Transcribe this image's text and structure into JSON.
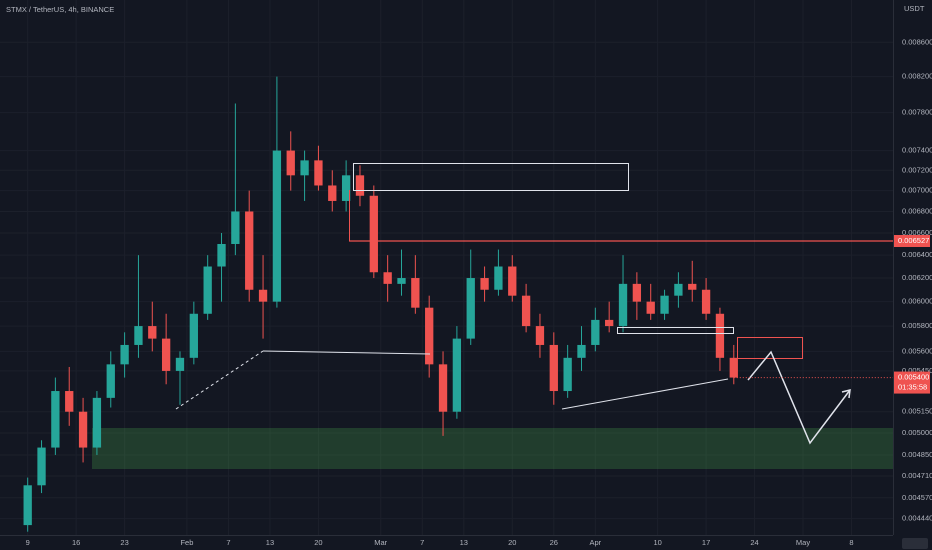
{
  "chart_data": {
    "type": "candlestick",
    "title": "STMX / TetherUS, 4h, BINANCE",
    "currency": "USDT",
    "log_scale": true,
    "grid": true,
    "up_color": "#26a69a",
    "down_color": "#ef5350",
    "x": [
      9,
      11,
      13,
      15,
      17,
      19,
      21,
      23,
      25,
      27,
      29,
      31,
      33,
      35,
      37,
      39,
      41,
      43,
      45,
      47,
      49,
      51,
      53,
      55,
      57,
      59,
      61,
      63,
      65,
      67,
      69,
      71,
      73,
      75,
      77,
      79,
      81,
      83,
      85,
      87,
      89,
      91,
      93,
      95,
      97,
      99,
      101,
      103,
      105,
      107,
      109,
      111
    ],
    "open": [
      0.0044,
      0.00465,
      0.0049,
      0.0053,
      0.00515,
      0.0049,
      0.00525,
      0.0055,
      0.00565,
      0.0058,
      0.0057,
      0.00545,
      0.00555,
      0.0059,
      0.0063,
      0.0065,
      0.0068,
      0.0061,
      0.006,
      0.0074,
      0.00715,
      0.0073,
      0.00705,
      0.0069,
      0.00715,
      0.00695,
      0.00625,
      0.00615,
      0.0062,
      0.00595,
      0.0055,
      0.00515,
      0.0057,
      0.0062,
      0.0061,
      0.0063,
      0.00605,
      0.0058,
      0.00565,
      0.0053,
      0.00555,
      0.00565,
      0.00585,
      0.0058,
      0.00615,
      0.006,
      0.0059,
      0.00605,
      0.00615,
      0.0061,
      0.0059,
      0.00555
    ],
    "high": [
      0.0047,
      0.00495,
      0.0054,
      0.00548,
      0.00525,
      0.0053,
      0.0056,
      0.00575,
      0.0064,
      0.006,
      0.0059,
      0.0056,
      0.006,
      0.0064,
      0.0066,
      0.0079,
      0.007,
      0.0064,
      0.0082,
      0.0076,
      0.0074,
      0.00745,
      0.0072,
      0.0073,
      0.00725,
      0.00705,
      0.0064,
      0.00645,
      0.0064,
      0.00605,
      0.0056,
      0.0058,
      0.00645,
      0.0063,
      0.00645,
      0.0064,
      0.00615,
      0.0059,
      0.00575,
      0.00565,
      0.0058,
      0.00595,
      0.006,
      0.0064,
      0.00625,
      0.00615,
      0.0061,
      0.00625,
      0.00635,
      0.0062,
      0.00595,
      0.00565
    ],
    "low": [
      0.00436,
      0.0046,
      0.00485,
      0.00505,
      0.0048,
      0.00485,
      0.00518,
      0.0054,
      0.00555,
      0.0056,
      0.00535,
      0.0052,
      0.0055,
      0.00585,
      0.006,
      0.0064,
      0.006,
      0.0057,
      0.00595,
      0.007,
      0.0069,
      0.007,
      0.0068,
      0.0068,
      0.00685,
      0.0062,
      0.006,
      0.00605,
      0.0059,
      0.0054,
      0.00498,
      0.0051,
      0.00565,
      0.006,
      0.00605,
      0.006,
      0.00575,
      0.00555,
      0.0052,
      0.00525,
      0.00545,
      0.0056,
      0.00575,
      0.00575,
      0.00585,
      0.00585,
      0.00585,
      0.00595,
      0.006,
      0.00585,
      0.00545,
      0.00535
    ],
    "close": [
      0.00465,
      0.0049,
      0.0053,
      0.00515,
      0.0049,
      0.00525,
      0.0055,
      0.00565,
      0.0058,
      0.0057,
      0.00545,
      0.00555,
      0.0059,
      0.0063,
      0.0065,
      0.0068,
      0.0061,
      0.006,
      0.0074,
      0.00715,
      0.0073,
      0.00705,
      0.0069,
      0.00715,
      0.00695,
      0.00625,
      0.00615,
      0.0062,
      0.00595,
      0.0055,
      0.00515,
      0.0057,
      0.0062,
      0.0061,
      0.0063,
      0.00605,
      0.0058,
      0.00565,
      0.0053,
      0.00555,
      0.00565,
      0.00585,
      0.0058,
      0.00615,
      0.006,
      0.0059,
      0.00605,
      0.00615,
      0.0061,
      0.0059,
      0.00555,
      0.0054
    ],
    "xlim": [
      5,
      134
    ],
    "xticks": [
      {
        "value": 9,
        "label": "9"
      },
      {
        "value": 16,
        "label": "16"
      },
      {
        "value": 23,
        "label": "23"
      },
      {
        "value": 32,
        "label": "Feb"
      },
      {
        "value": 38,
        "label": "7"
      },
      {
        "value": 44,
        "label": "13"
      },
      {
        "value": 51,
        "label": "20"
      },
      {
        "value": 60,
        "label": "Mar"
      },
      {
        "value": 66,
        "label": "7"
      },
      {
        "value": 72,
        "label": "13"
      },
      {
        "value": 79,
        "label": "20"
      },
      {
        "value": 85,
        "label": "26"
      },
      {
        "value": 91,
        "label": "Apr"
      },
      {
        "value": 100,
        "label": "10"
      },
      {
        "value": 107,
        "label": "17"
      },
      {
        "value": 114,
        "label": "24"
      },
      {
        "value": 121,
        "label": "May"
      },
      {
        "value": 128,
        "label": "8"
      }
    ],
    "ylim": [
      0.00434,
      0.00912
    ],
    "yticks": [
      {
        "value": 0.0086,
        "label": "0.008600"
      },
      {
        "value": 0.0082,
        "label": "0.008200"
      },
      {
        "value": 0.0078,
        "label": "0.007800"
      },
      {
        "value": 0.0074,
        "label": "0.007400"
      },
      {
        "value": 0.0072,
        "label": "0.007200"
      },
      {
        "value": 0.007,
        "label": "0.007000"
      },
      {
        "value": 0.0068,
        "label": "0.006800"
      },
      {
        "value": 0.0066,
        "label": "0.006600"
      },
      {
        "value": 0.0064,
        "label": "0.006400"
      },
      {
        "value": 0.0062,
        "label": "0.006200"
      },
      {
        "value": 0.006,
        "label": "0.006000"
      },
      {
        "value": 0.0058,
        "label": "0.005800"
      },
      {
        "value": 0.0056,
        "label": "0.005600"
      },
      {
        "value": 0.00545,
        "label": "0.005450"
      },
      {
        "value": 0.00515,
        "label": "0.005150"
      },
      {
        "value": 0.005,
        "label": "0.005000"
      },
      {
        "value": 0.00485,
        "label": "0.004850"
      },
      {
        "value": 0.00471,
        "label": "0.004710"
      },
      {
        "value": 0.00457,
        "label": "0.004570"
      },
      {
        "value": 0.00444,
        "label": "0.004440"
      }
    ],
    "price_lines": [
      {
        "value": 0.006527,
        "label": "0.006527",
        "color": "#ef5350"
      }
    ],
    "last_price": {
      "value": 0.0054,
      "label": "0.005400",
      "color": "#ef5350"
    },
    "countdown": "01:35:58"
  }
}
